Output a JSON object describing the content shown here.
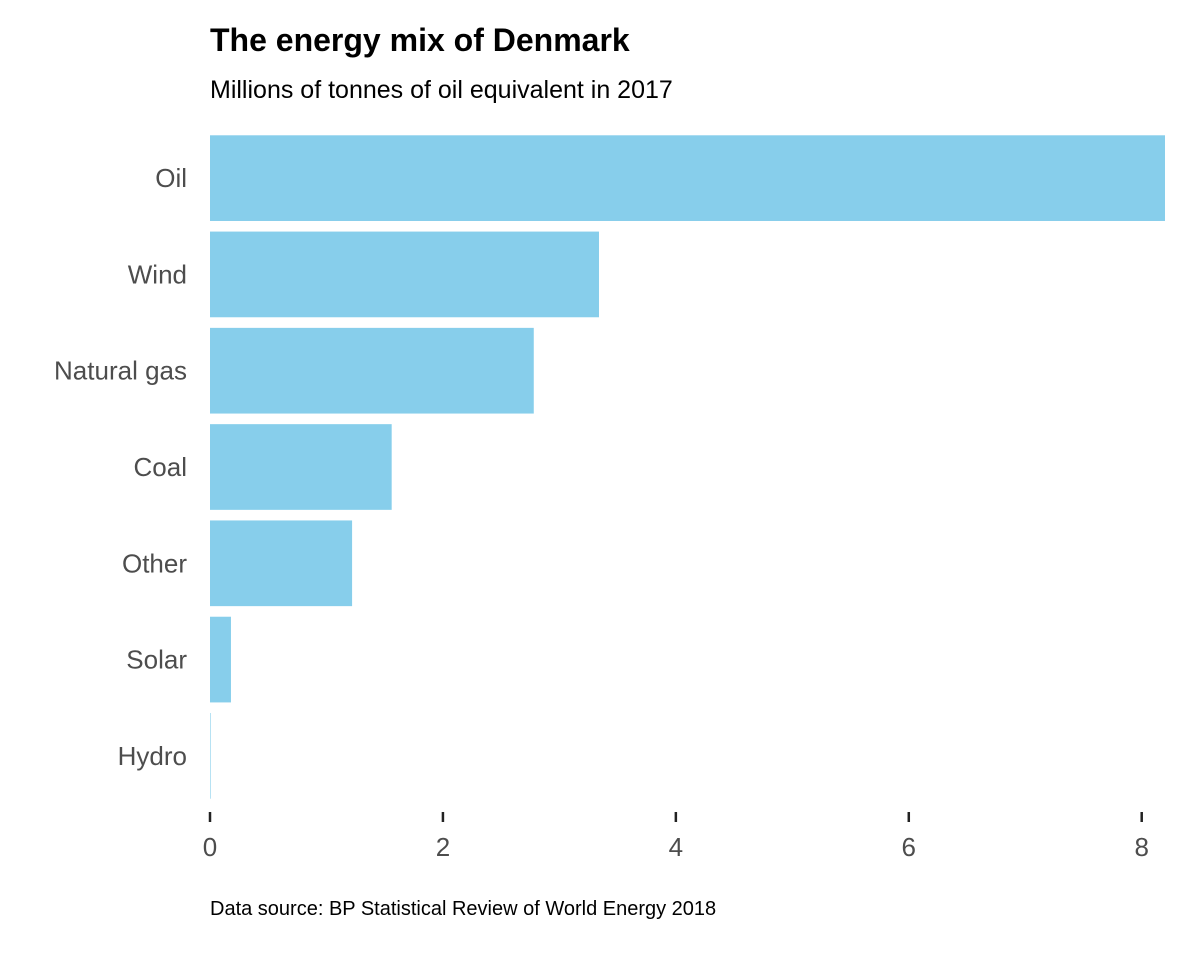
{
  "chart_data": {
    "type": "bar",
    "orientation": "horizontal",
    "title": "The energy mix of Denmark",
    "subtitle": "Millions of tonnes of oil equivalent in 2017",
    "source": "Data source: BP Statistical Review of World Energy 2018",
    "categories": [
      "Oil",
      "Wind",
      "Natural gas",
      "Coal",
      "Other",
      "Solar",
      "Hydro"
    ],
    "values": [
      8.2,
      3.34,
      2.78,
      1.56,
      1.22,
      0.18,
      0.004
    ],
    "xlim": [
      0,
      8.2
    ],
    "xticks": [
      0,
      2,
      4,
      6,
      8
    ],
    "bar_color": "#87ceeb",
    "grid": false
  }
}
